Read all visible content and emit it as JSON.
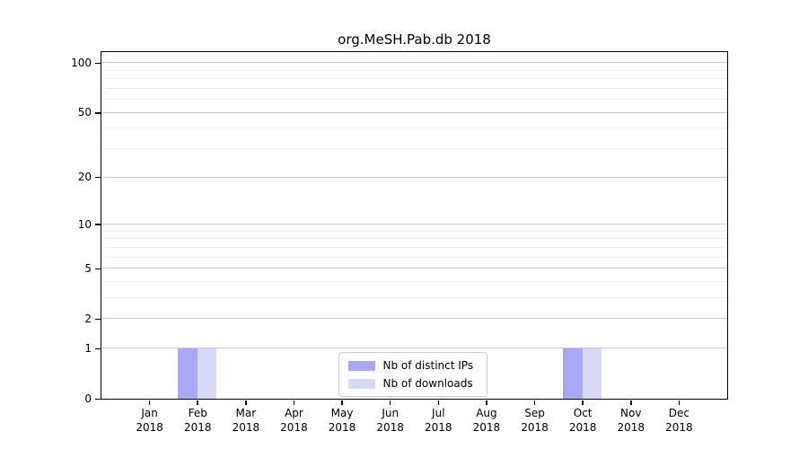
{
  "chart_data": {
    "type": "bar",
    "title": "org.MeSH.Pab.db 2018",
    "categories": [
      "Jan 2018",
      "Feb 2018",
      "Mar 2018",
      "Apr 2018",
      "May 2018",
      "Jun 2018",
      "Jul 2018",
      "Aug 2018",
      "Sep 2018",
      "Oct 2018",
      "Nov 2018",
      "Dec 2018"
    ],
    "series": [
      {
        "name": "Nb of distinct IPs",
        "color": "#a8a8f7",
        "values": [
          0,
          1,
          0,
          0,
          0,
          0,
          0,
          0,
          0,
          1,
          0,
          0
        ]
      },
      {
        "name": "Nb of downloads",
        "color": "#d8d8f7",
        "values": [
          0,
          1,
          0,
          0,
          0,
          0,
          0,
          0,
          0,
          1,
          0,
          0
        ]
      }
    ],
    "yscale": "log1p",
    "ylim": [
      0,
      116
    ],
    "ytick_labels": [
      0,
      1,
      2,
      5,
      10,
      20,
      50,
      100
    ],
    "yminor_ticks": [
      3,
      4,
      6,
      7,
      8,
      9,
      30,
      40,
      60,
      70,
      80,
      90
    ],
    "xlabel": "",
    "ylabel": "",
    "grid": "horizontal",
    "legend": {
      "location": "lower center",
      "entries": [
        "Nb of distinct IPs",
        "Nb of downloads"
      ]
    },
    "colors": {
      "grid_major": "#cccccc",
      "grid_minor": "#f0f0f0",
      "axis": "#000000",
      "legend_border": "#cccccc",
      "background": "#ffffff"
    }
  }
}
